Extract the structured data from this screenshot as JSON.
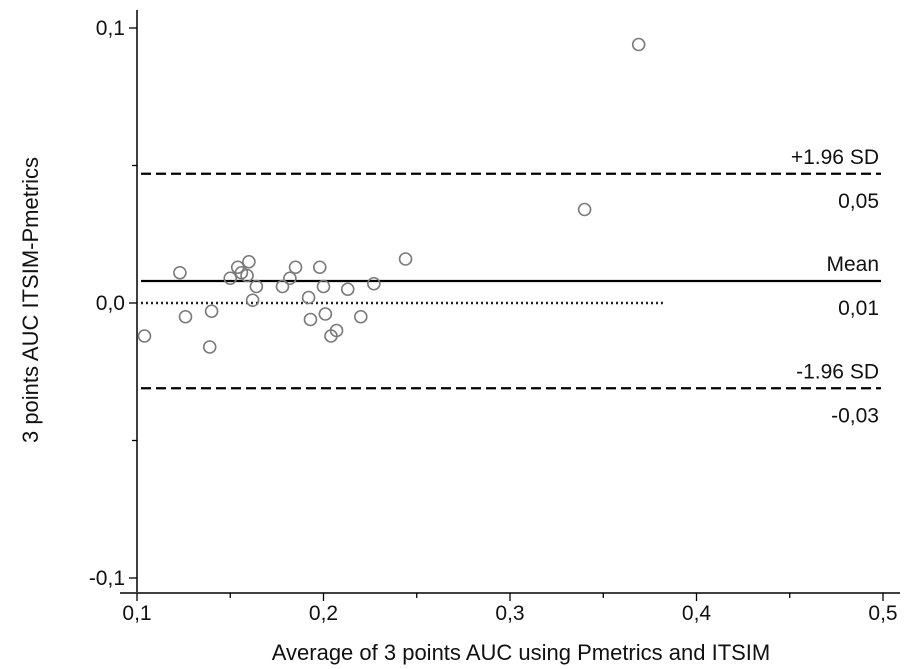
{
  "chart_data": {
    "type": "scatter",
    "title": "",
    "xlabel": "Average of 3 points AUC using Pmetrics and ITSIM",
    "ylabel": "3 points AUC ITSIM-Pmetrics",
    "xlim": [
      0.1,
      0.5
    ],
    "ylim": [
      -0.1,
      0.1
    ],
    "x_ticks": [
      "0,1",
      "0,2",
      "0,3",
      "0,4",
      "0,5"
    ],
    "y_ticks": [
      "-0,1",
      "0,0",
      "0,1"
    ],
    "grid": false,
    "points": [
      {
        "x": 0.104,
        "y": -0.012
      },
      {
        "x": 0.123,
        "y": 0.011
      },
      {
        "x": 0.126,
        "y": -0.005
      },
      {
        "x": 0.139,
        "y": -0.016
      },
      {
        "x": 0.14,
        "y": -0.003
      },
      {
        "x": 0.15,
        "y": 0.009
      },
      {
        "x": 0.154,
        "y": 0.013
      },
      {
        "x": 0.156,
        "y": 0.011
      },
      {
        "x": 0.159,
        "y": 0.01
      },
      {
        "x": 0.16,
        "y": 0.015
      },
      {
        "x": 0.162,
        "y": 0.001
      },
      {
        "x": 0.164,
        "y": 0.006
      },
      {
        "x": 0.178,
        "y": 0.006
      },
      {
        "x": 0.182,
        "y": 0.009
      },
      {
        "x": 0.185,
        "y": 0.013
      },
      {
        "x": 0.192,
        "y": 0.002
      },
      {
        "x": 0.193,
        "y": -0.006
      },
      {
        "x": 0.198,
        "y": 0.013
      },
      {
        "x": 0.2,
        "y": 0.006
      },
      {
        "x": 0.201,
        "y": -0.004
      },
      {
        "x": 0.204,
        "y": -0.012
      },
      {
        "x": 0.207,
        "y": -0.01
      },
      {
        "x": 0.213,
        "y": 0.005
      },
      {
        "x": 0.22,
        "y": -0.005
      },
      {
        "x": 0.227,
        "y": 0.007
      },
      {
        "x": 0.244,
        "y": 0.016
      },
      {
        "x": 0.34,
        "y": 0.034
      },
      {
        "x": 0.369,
        "y": 0.094
      }
    ],
    "reference_lines": [
      {
        "name": "+1.96 SD",
        "y": 0.047,
        "style": "dashed",
        "label_top": "+1.96 SD",
        "label_bottom": "0,05"
      },
      {
        "name": "Mean",
        "y": 0.008,
        "style": "solid",
        "label_top": "Mean",
        "label_bottom": "0,01"
      },
      {
        "name": "-1.96 SD",
        "y": -0.031,
        "style": "dashed",
        "label_top": "-1.96 SD",
        "label_bottom": "-0,03"
      }
    ],
    "zero_line": {
      "y": 0.0,
      "style": "dotted",
      "x_end": 0.382
    }
  }
}
